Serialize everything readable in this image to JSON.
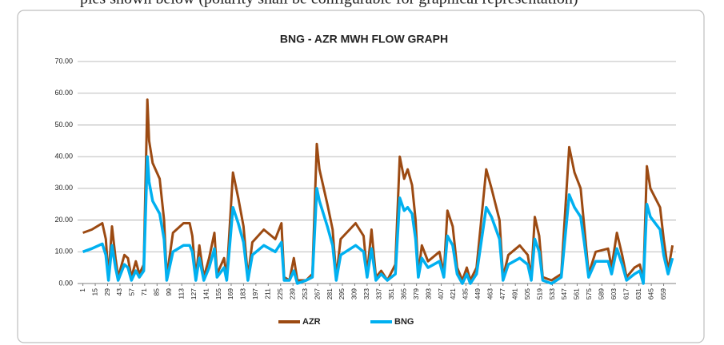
{
  "document_text": "ples shown below (polarity shall be configurable for graphical representation)",
  "chart_data": {
    "type": "line",
    "title": "BNG - AZR   MWH FLOW GRAPH",
    "x": [
      1,
      11,
      23,
      27,
      30,
      34,
      38,
      41,
      48,
      52,
      56,
      61,
      65,
      70,
      74,
      76,
      80,
      88,
      93,
      96,
      103,
      115,
      122,
      125,
      129,
      133,
      138,
      144,
      150,
      153,
      161,
      164,
      171,
      177,
      183,
      188,
      193,
      206,
      219,
      226,
      229,
      235,
      240,
      244,
      254,
      261,
      266,
      269,
      278,
      284,
      288,
      293,
      310,
      319,
      323,
      328,
      333,
      339,
      346,
      355,
      360,
      365,
      369,
      374,
      378,
      381,
      385,
      392,
      405,
      410,
      414,
      420,
      425,
      431,
      436,
      440,
      447,
      458,
      464,
      473,
      477,
      483,
      496,
      505,
      509,
      513,
      518,
      522,
      532,
      543,
      552,
      558,
      565,
      569,
      574,
      582,
      596,
      600,
      606,
      612,
      617,
      626,
      632,
      636,
      640,
      644,
      655,
      659,
      664,
      669
    ],
    "series": [
      {
        "name": "AZR",
        "color": "#9c4a12",
        "values": [
          16,
          17,
          19,
          14,
          2,
          18,
          8,
          2,
          9,
          8,
          2,
          7,
          3,
          6,
          58,
          45,
          38,
          33,
          20,
          2,
          16,
          19,
          19,
          15,
          2,
          12,
          2,
          8,
          16,
          3,
          8,
          2,
          35,
          27,
          18,
          2,
          13,
          17,
          14,
          19,
          2,
          1,
          8,
          1,
          1,
          3,
          44,
          36,
          25,
          17,
          2,
          14,
          19,
          15,
          3,
          17,
          2,
          4,
          1,
          6,
          40,
          33,
          36,
          31,
          20,
          3,
          12,
          7,
          10,
          3,
          23,
          18,
          5,
          1,
          5,
          1,
          5,
          36,
          30,
          20,
          2,
          9,
          12,
          9,
          2,
          21,
          15,
          2,
          1,
          3,
          43,
          35,
          30,
          18,
          3,
          10,
          11,
          5,
          16,
          9,
          2,
          5,
          6,
          1,
          37,
          30,
          24,
          14,
          4,
          12
        ]
      },
      {
        "name": "BNG",
        "color": "#00b0f0",
        "values": [
          10,
          11,
          12.5,
          9,
          1,
          12,
          5,
          1,
          6,
          5,
          1,
          4,
          2,
          4,
          40,
          32,
          26,
          22,
          14,
          1,
          10,
          12,
          12,
          10,
          1,
          8,
          1,
          5,
          11,
          2,
          5,
          1,
          24,
          19,
          13,
          1,
          9,
          12,
          10,
          13,
          1,
          1,
          4,
          0,
          1,
          2,
          30,
          26,
          18,
          12,
          1,
          9,
          12,
          10,
          2,
          11,
          1,
          3,
          1,
          3,
          27,
          23,
          24,
          22,
          14,
          2,
          8,
          5,
          7,
          2,
          15,
          12,
          3,
          0,
          3,
          0,
          3,
          24,
          21,
          14,
          1,
          6,
          8,
          6,
          1,
          14,
          10,
          1,
          0,
          2,
          28,
          24,
          21,
          13,
          2,
          7,
          7,
          3,
          11,
          6,
          1,
          3,
          4,
          0,
          25,
          21,
          17,
          9,
          3,
          8
        ]
      }
    ],
    "xlim": [
      -5,
      673
    ],
    "xticks": [
      1,
      15,
      29,
      43,
      57,
      71,
      85,
      99,
      113,
      127,
      141,
      155,
      169,
      183,
      197,
      211,
      225,
      239,
      253,
      267,
      281,
      295,
      309,
      323,
      337,
      351,
      365,
      379,
      393,
      407,
      421,
      435,
      449,
      463,
      477,
      491,
      505,
      519,
      533,
      547,
      561,
      575,
      589,
      603,
      617,
      631,
      645,
      659
    ],
    "ylim": [
      0,
      70
    ],
    "yticks": [
      {
        "value": 0,
        "label": "0.00"
      },
      {
        "value": 10,
        "label": "10.00"
      },
      {
        "value": 20,
        "label": "20.00"
      },
      {
        "value": 30,
        "label": "30.00"
      },
      {
        "value": 40,
        "label": "40.00"
      },
      {
        "value": 50,
        "label": "50.00"
      },
      {
        "value": 60,
        "label": "60.00"
      },
      {
        "value": 70,
        "label": "70.00"
      }
    ],
    "grid": true,
    "legend": "bottom"
  }
}
